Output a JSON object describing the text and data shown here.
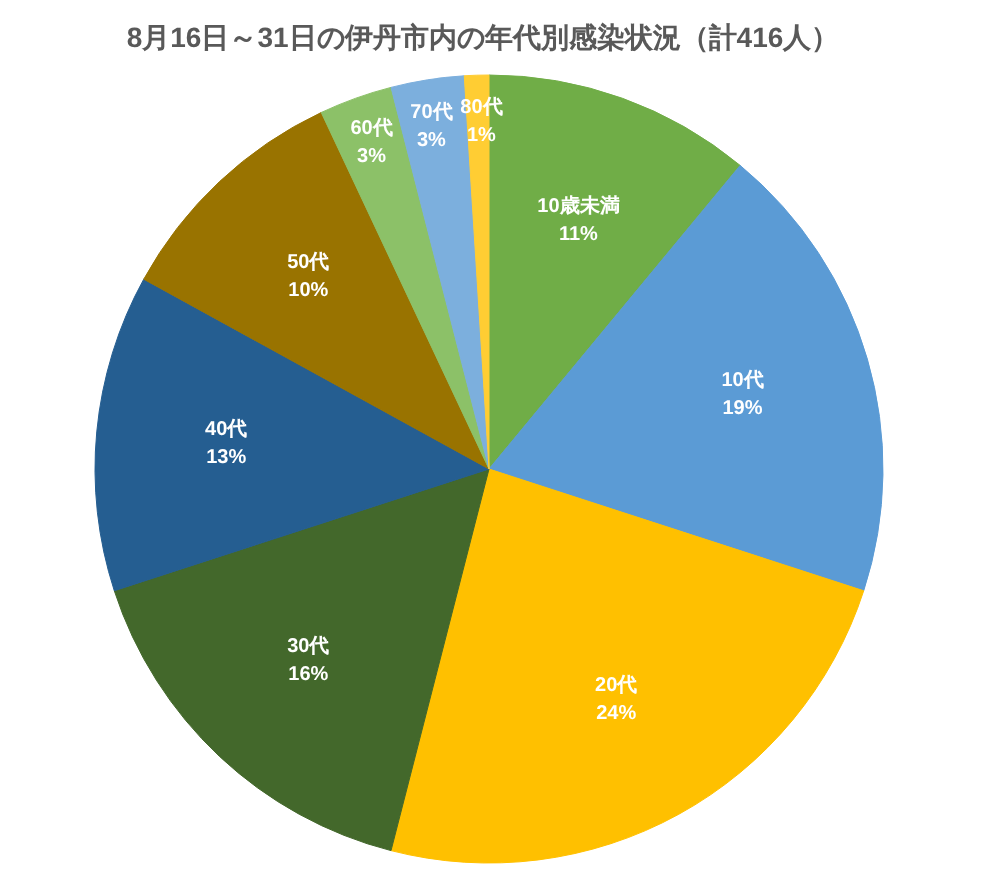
{
  "chart_data": {
    "type": "pie",
    "title": "8月16日～31日の伊丹市内の年代別感染状況（計416人）",
    "categories": [
      "10歳未満",
      "10代",
      "20代",
      "30代",
      "40代",
      "50代",
      "60代",
      "70代",
      "80代"
    ],
    "values": [
      11,
      19,
      24,
      16,
      13,
      10,
      3,
      3,
      1
    ],
    "colors": [
      "#70ad47",
      "#5b9bd5",
      "#ffc000",
      "#43682b",
      "#255e91",
      "#997300",
      "#8cc168",
      "#7cafdd",
      "#ffcd33"
    ],
    "value_labels": [
      "11%",
      "19%",
      "24%",
      "16%",
      "13%",
      "10%",
      "3%",
      "3%",
      "1%"
    ]
  }
}
